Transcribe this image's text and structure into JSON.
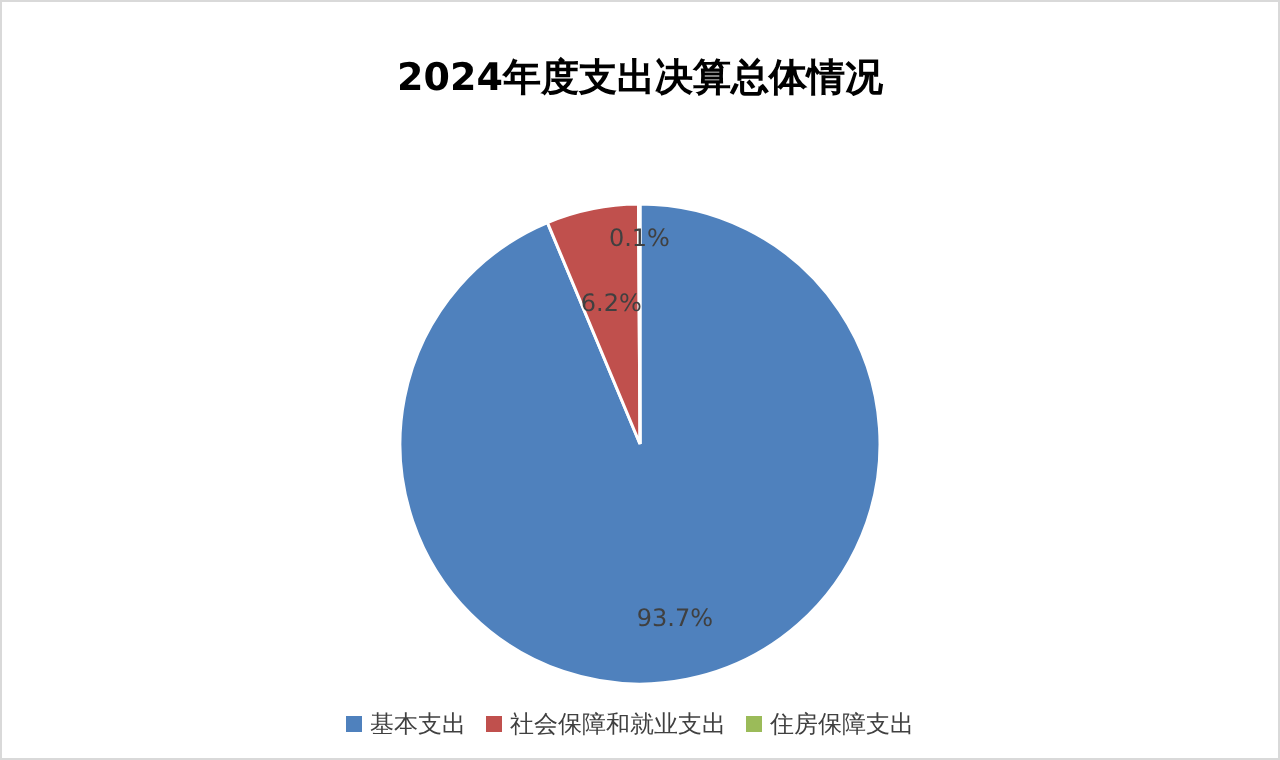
{
  "chart_data": {
    "type": "pie",
    "title": "2024年度支出决算总体情况",
    "categories": [
      "基本支出",
      "社会保障和就业支出",
      "住房保障支出"
    ],
    "values": [
      93.7,
      6.2,
      0.1
    ],
    "colors": [
      "#4f81bd",
      "#c0504d",
      "#9bbb59"
    ],
    "value_labels": [
      "93.7%",
      "6.2%",
      "0.1%"
    ],
    "legend": "bottom"
  }
}
